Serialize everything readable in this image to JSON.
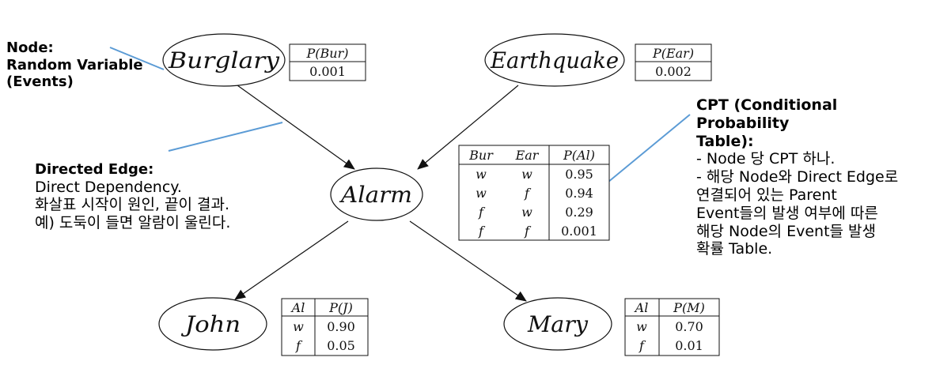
{
  "nodes": {
    "burglary": "Burglary",
    "earthquake": "Earthquake",
    "alarm": "Alarm",
    "john": "John",
    "mary": "Mary"
  },
  "cpts": {
    "burglary": {
      "header": [
        "P(Bur)"
      ],
      "rows": [
        [
          "0.001"
        ]
      ]
    },
    "earthquake": {
      "header": [
        "P(Ear)"
      ],
      "rows": [
        [
          "0.002"
        ]
      ]
    },
    "alarm": {
      "header": [
        "Bur",
        "Ear",
        "P(Al)"
      ],
      "rows": [
        [
          "w",
          "w",
          "0.95"
        ],
        [
          "w",
          "f",
          "0.94"
        ],
        [
          "f",
          "w",
          "0.29"
        ],
        [
          "f",
          "f",
          "0.001"
        ]
      ]
    },
    "john": {
      "header": [
        "Al",
        "P(J)"
      ],
      "rows": [
        [
          "w",
          "0.90"
        ],
        [
          "f",
          "0.05"
        ]
      ]
    },
    "mary": {
      "header": [
        "Al",
        "P(M)"
      ],
      "rows": [
        [
          "w",
          "0.70"
        ],
        [
          "f",
          "0.01"
        ]
      ]
    }
  },
  "annotations": {
    "node": {
      "lines": [
        "Node:",
        "Random Variable",
        "(Events)"
      ]
    },
    "edge": {
      "title": "Directed Edge:",
      "lines": [
        "Direct Dependency.",
        "화살표 시작이 원인, 끝이 결과.",
        "예) 도둑이 들면 알람이 울린다."
      ]
    },
    "cpt": {
      "title_lines": [
        "CPT (Conditional Probability",
        "Table):"
      ],
      "lines": [
        "- Node 당 CPT 하나.",
        "- 해당 Node와 Direct Edge로",
        "연결되어 있는 Parent",
        "Event들의 발생 여부에 따른",
        "해당 Node의 Event들 발생",
        "확률 Table."
      ]
    }
  },
  "colors": {
    "callout": "#5b9bd5",
    "ink": "#111111"
  }
}
